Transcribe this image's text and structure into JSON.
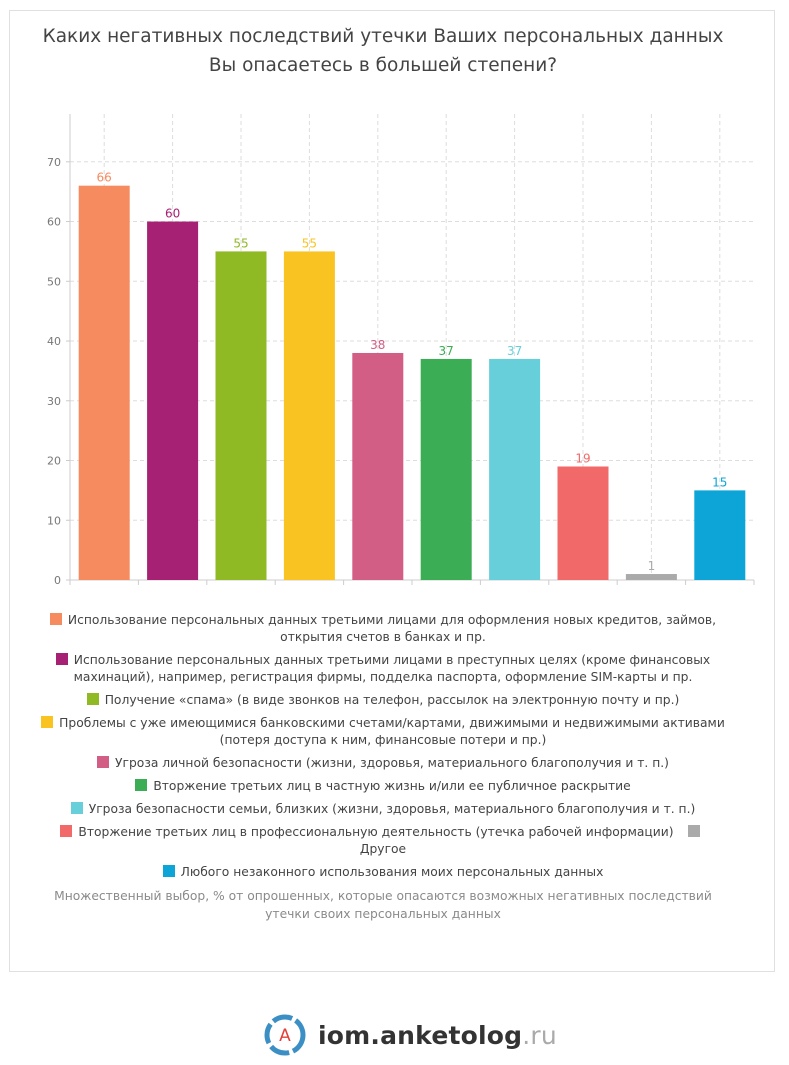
{
  "chart_data": {
    "type": "bar",
    "title": "Каких негативных последствий утечки Ваших персональных данных Вы опасаетесь в большей степени?",
    "yticks": [
      0,
      10,
      20,
      30,
      40,
      50,
      60,
      70
    ],
    "ylim": [
      0,
      78
    ],
    "grid": true,
    "legend_position": "bottom",
    "categories": [
      "Использование персональных данных третьими лицами для оформления новых кредитов, займов, открытия счетов в банках и пр.",
      "Использование персональных данных третьими лицами в преступных целях (кроме финансовых махинаций), например, регистрация фирмы, подделка паспорта, оформление SIM-карты и пр.",
      "Получение «спама» (в виде звонков на телефон, рассылок на электронную почту и пр.)",
      "Проблемы с уже имеющимися банковскими счетами/картами, движимыми и недвижимыми активами (потеря доступа к ним, финансовые потери и пр.)",
      "Угроза личной безопасности (жизни, здоровья, материального благополучия и т. п.)",
      "Вторжение третьих лиц в частную жизнь и/или ее публичное раскрытие",
      "Угроза безопасности семьи, близких (жизни, здоровья, материального благополучия и т. п.)",
      "Вторжение третьих лиц в профессиональную деятельность (утечка рабочей информации)",
      "Другое",
      "Любого незаконного использования моих персональных данных"
    ],
    "values": [
      66,
      60,
      55,
      55,
      38,
      37,
      37,
      19,
      1,
      15
    ],
    "colors": [
      "#f68b5f",
      "#a62073",
      "#8fba24",
      "#f9c322",
      "#d25e86",
      "#3bad54",
      "#66cfda",
      "#f2696a",
      "#aaaaaa",
      "#0da5d8"
    ],
    "note": "Множественный выбор, % от опрошенных, которые опасаются возможных негативных последствий утечки своих персональных данных"
  },
  "brand": {
    "logo_letter": "A",
    "name": "iom.anketolog",
    "tld": ".ru"
  }
}
